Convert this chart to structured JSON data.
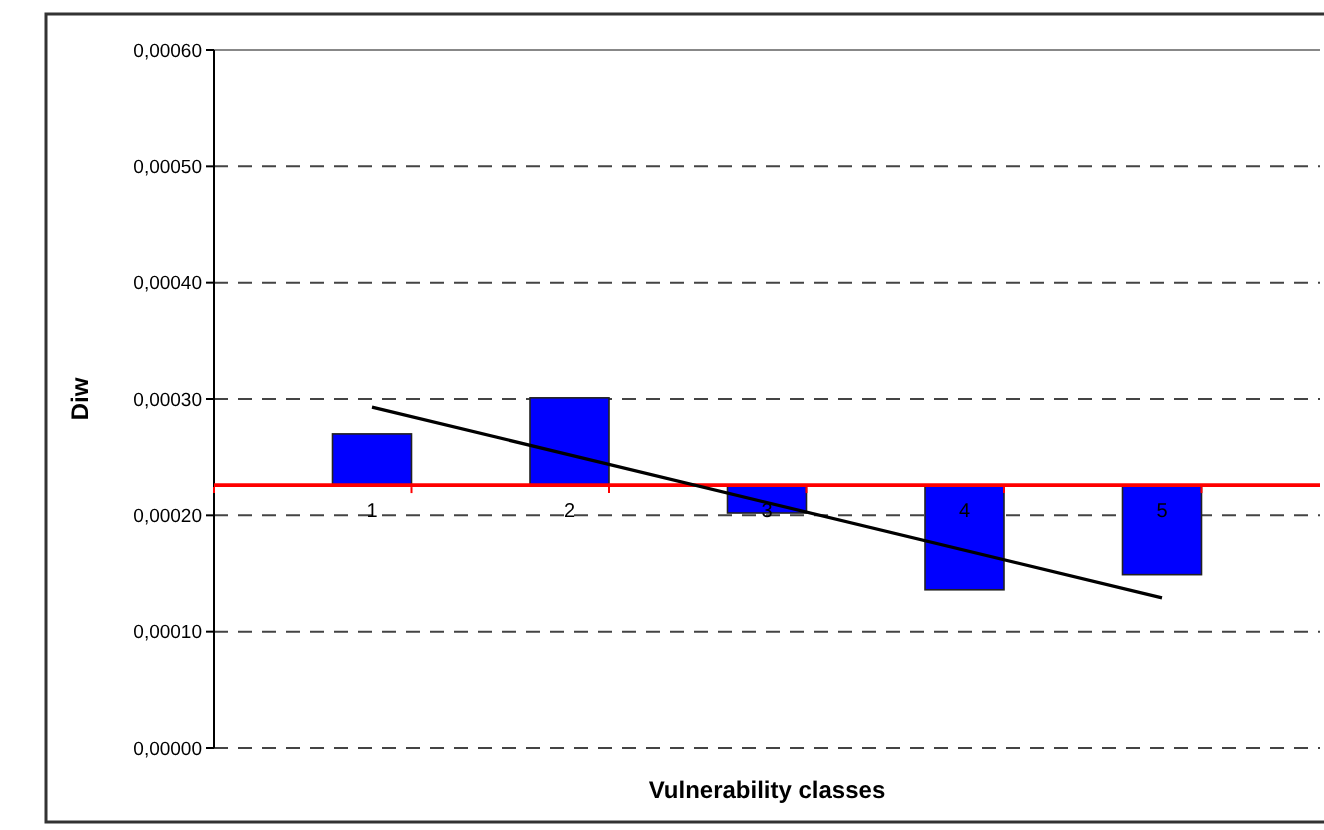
{
  "chart_data": {
    "type": "bar",
    "xlabel": "Vulnerability classes",
    "ylabel": "Diw",
    "categories": [
      "1",
      "2",
      "3",
      "4",
      "5"
    ],
    "series": [
      {
        "color": "#0000ff",
        "values": [
          4.4e-05,
          7.5e-05,
          -2.4e-05,
          -9e-05,
          -7.7e-05
        ],
        "base": [
          0.000226,
          0.000226,
          0.000226,
          0.000226,
          0.000226
        ]
      },
      {
        "type": "line",
        "color": "#000000",
        "x": [
          "1",
          "5"
        ],
        "values": [
          0.000293,
          0.000129
        ]
      }
    ],
    "ylim": [
      0,
      0.0006
    ],
    "yticks": [
      {
        "value": 0,
        "label": "0,00000"
      },
      {
        "value": 0.0001,
        "label": "0,00010"
      },
      {
        "value": 0.0002,
        "label": "0,00020"
      },
      {
        "value": 0.0003,
        "label": "0,00030"
      },
      {
        "value": 0.0004,
        "label": "0,00040"
      },
      {
        "value": 0.0005,
        "label": "0,00050"
      },
      {
        "value": 0.0006,
        "label": "0,00060"
      }
    ],
    "grid": "y"
  }
}
